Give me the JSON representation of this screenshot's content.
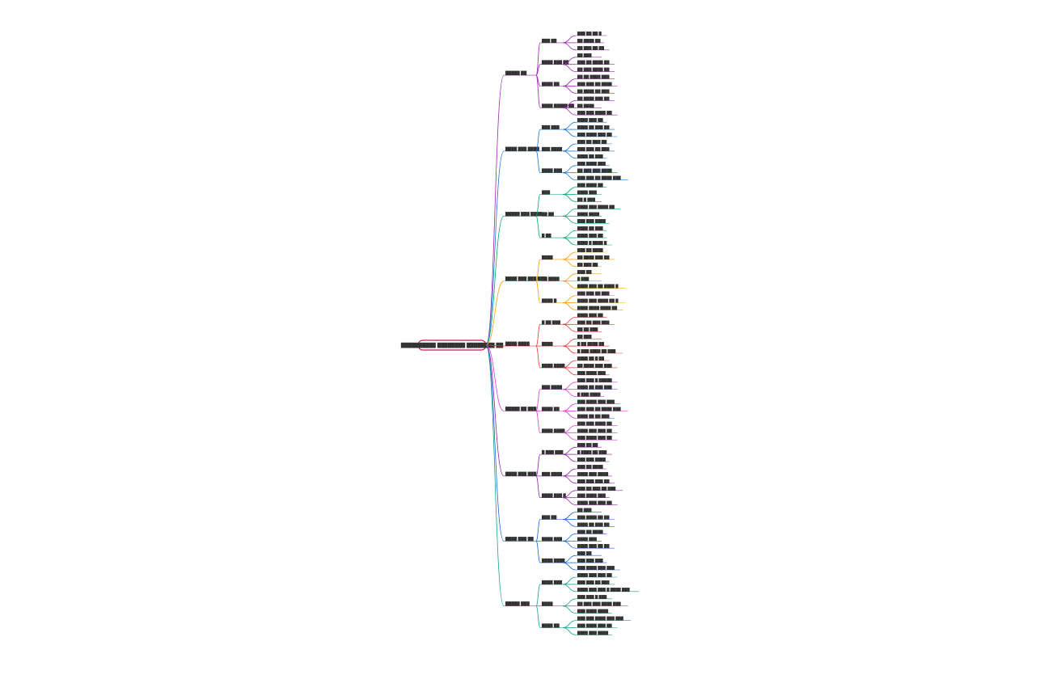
{
  "root": {
    "label": "██████████ ████████ ████████ ██",
    "color": "#c2185b"
  },
  "branches": [
    {
      "label": "█████ ██",
      "color": "#9c27b0",
      "children": [
        {
          "label": "███ ██",
          "leaves": [
            "███ ██ ██ █",
            "██ ████ ██",
            "██ ███ ██ ██"
          ]
        },
        {
          "label": "████ ███ ██",
          "leaves": [
            "██ ███",
            "███ ██ ████ ██",
            "██ ███ ████ ██"
          ]
        },
        {
          "label": "████ ██",
          "leaves": [
            "██ ██ ████ ███",
            "███ ███ ██ ████",
            "██ ████ ██ ███"
          ]
        },
        {
          "label": "████ █████ ██",
          "leaves": [
            "██ ████ ███ ██",
            "██ ████",
            "███ ███ ████ ██"
          ]
        }
      ]
    },
    {
      "label": "████ ███ ████",
      "color": "#1976d2",
      "children": [
        {
          "label": "███ ███",
          "leaves": [
            "████ ███ ██",
            "████ ██ ███ ██",
            "███ ████ ███ ██"
          ]
        },
        {
          "label": "███ ████",
          "leaves": [
            "███ ██ ███ ██",
            "███ ███ ██ ███",
            "████ ██ ███"
          ]
        },
        {
          "label": "████ ███",
          "leaves": [
            "███ ████ ███",
            "██ ███ ███ ████",
            "███ ███ ██ ████ ███"
          ]
        }
      ]
    },
    {
      "label": "█████ ███ ████",
      "color": "#00a86b",
      "children": [
        {
          "label": "███",
          "leaves": [
            "███ ████ ██",
            "████ ███",
            "██ █ ███"
          ]
        },
        {
          "label": "██ ██",
          "leaves": [
            "████ ███ ████ ██",
            "████ ████",
            "███ ███ ████"
          ]
        },
        {
          "label": "█ ██",
          "leaves": [
            "████ ██ ███",
            "████ ███ ██",
            "████ █ ████ █"
          ]
        }
      ]
    },
    {
      "label": "████ ███ ███ ███",
      "color": "#f59e0b",
      "children": [
        {
          "label": "████",
          "leaves": [
            "███ ██ ████",
            "██ ████ ███ ██",
            "██ ███ ██"
          ]
        },
        {
          "label": "██ ████",
          "leaves": [
            "███ ██",
            "█ ███",
            "████ ███ ██ ████ █"
          ]
        },
        {
          "label": "████ █",
          "leaves": [
            "███ ███ ██ ███",
            "████ ███ ████ ██ █",
            "████ ████ ████ ██"
          ]
        }
      ]
    },
    {
      "label": "████ ████",
      "color": "#e53935",
      "children": [
        {
          "label": "█ ██ ███",
          "leaves": [
            "████ ███ ██",
            "███ ██ ███ ███",
            "██ ██ ███"
          ]
        },
        {
          "label": "████",
          "leaves": [
            "██ ███",
            "█ ██ ████ ██",
            "█ ███ ████ ██ ███"
          ]
        },
        {
          "label": "████ ████",
          "leaves": [
            "████ ██ █ ██",
            "██ ████ ███ ███",
            "███ ████ ███"
          ]
        }
      ]
    },
    {
      "label": "█████ ██ ███",
      "color": "#d63fcf",
      "children": [
        {
          "label": "███ ████",
          "leaves": [
            "███ ███ █ █████",
            "████ ██ ███ ███",
            "█ ███ ████"
          ]
        },
        {
          "label": "████ ██",
          "leaves": [
            "███ ████ ███ ███",
            "███ ███ ██ ████ ███",
            "████ ██ ██ ███"
          ]
        },
        {
          "label": "████ ████",
          "leaves": [
            "███ ███ ████ ██",
            "████ ███ ███ ██",
            "███ ████ ███ ██"
          ]
        }
      ]
    },
    {
      "label": "████ ███ ███",
      "color": "#8e24aa",
      "children": [
        {
          "label": "█ ███ ███",
          "leaves": [
            "███ ██ ██",
            "█ ████ ██ ███",
            "███ ███ ████"
          ]
        },
        {
          "label": "███ ████",
          "leaves": [
            "███ ██ ████",
            "████ ███ ████",
            "███ ███ ███ ██"
          ]
        },
        {
          "label": "████ ███ █",
          "leaves": [
            "███ ██ ███ ██ ███",
            "███ ████ ███",
            "████ ███ ███ ██"
          ]
        }
      ]
    },
    {
      "label": "████ ███ ██",
      "color": "#1e63d6",
      "children": [
        {
          "label": "███ ██",
          "leaves": [
            "██ ███",
            "███ ████ ██ ██",
            "████ ██ ███ ██"
          ]
        },
        {
          "label": "████ ███",
          "leaves": [
            "███ ██ ████",
            "████ ███",
            "████ ███ ██ ██"
          ]
        },
        {
          "label": "████ ████",
          "leaves": [
            "███ ██",
            "███ ███ ███",
            "███ ████ ███ ███"
          ]
        }
      ]
    },
    {
      "label": "█████ ███",
      "color": "#12a58a",
      "children": [
        {
          "label": "████ ███",
          "leaves": [
            "████ ███ ███ ██",
            "███ ███ ██ ███",
            "████ ███ ███ █ ████ ███"
          ]
        },
        {
          "label": "████",
          "leaves": [
            "███ ███ █ ███",
            "██ ███ ███ ████ ███",
            "███ ████ ████"
          ]
        },
        {
          "label": "████ ██",
          "leaves": [
            "███ ███ ████ ███ ███",
            "███ ████ ███ ██",
            "████ ███ ████"
          ]
        }
      ]
    }
  ]
}
